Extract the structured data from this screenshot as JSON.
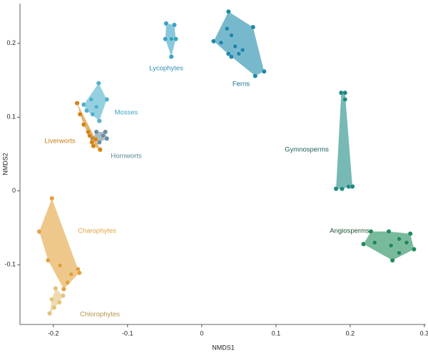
{
  "chart_data": {
    "type": "scatter",
    "x_label": "NMDS1",
    "y_label": "NMDS2",
    "xlim": [
      -0.245,
      0.302
    ],
    "ylim": [
      -0.181,
      0.254
    ],
    "xticks": [
      -0.2,
      -0.1,
      0,
      0.1,
      0.2,
      0.3
    ],
    "yticks": [
      -0.1,
      0,
      0.1,
      0.2
    ],
    "series": [
      {
        "name": "Lycophytes",
        "color": "#3aa3c4",
        "x": [
          -0.048,
          -0.037,
          -0.049,
          -0.041,
          -0.035,
          -0.041
        ],
        "y": [
          0.227,
          0.225,
          0.206,
          0.206,
          0.206,
          0.182
        ]
      },
      {
        "name": "Ferns",
        "color": "#1e88ab",
        "x": [
          0.036,
          0.069,
          0.016,
          0.026,
          0.04,
          0.045,
          0.036,
          0.05,
          0.034,
          0.055,
          0.072,
          0.084,
          0.04
        ],
        "y": [
          0.243,
          0.222,
          0.203,
          0.201,
          0.211,
          0.196,
          0.186,
          0.186,
          0.22,
          0.191,
          0.156,
          0.162,
          0.182
        ]
      },
      {
        "name": "Mosses",
        "color": "#4fb0cc",
        "x": [
          -0.139,
          -0.159,
          -0.149,
          -0.155,
          -0.142,
          -0.128,
          -0.138,
          -0.147
        ],
        "y": [
          0.146,
          0.117,
          0.124,
          0.109,
          0.114,
          0.124,
          0.095,
          0.104
        ]
      },
      {
        "name": "Hornworts",
        "color": "#6a8ea0",
        "x": [
          -0.142,
          -0.133,
          -0.13,
          -0.147,
          -0.138,
          -0.128
        ],
        "y": [
          0.08,
          0.075,
          0.08,
          0.071,
          0.066,
          0.071
        ]
      },
      {
        "name": "Liverworts",
        "color": "#d4820f",
        "x": [
          -0.168,
          -0.164,
          -0.159,
          -0.151,
          -0.148,
          -0.146,
          -0.137,
          -0.153,
          -0.143
        ],
        "y": [
          0.119,
          0.104,
          0.09,
          0.075,
          0.066,
          0.061,
          0.056,
          0.08,
          0.07
        ]
      },
      {
        "name": "Gymnosperms",
        "color": "#1d8a82",
        "x": [
          0.188,
          0.193,
          0.181,
          0.189,
          0.198,
          0.203,
          0.193
        ],
        "y": [
          0.133,
          0.133,
          0.003,
          0.003,
          0.006,
          0.006,
          0.124
        ]
      },
      {
        "name": "Angiosperms",
        "color": "#1f8a5a",
        "x": [
          0.218,
          0.228,
          0.252,
          0.281,
          0.286,
          0.266,
          0.257,
          0.276,
          0.266,
          0.255,
          0.233
        ],
        "y": [
          -0.072,
          -0.055,
          -0.055,
          -0.058,
          -0.079,
          -0.084,
          -0.094,
          -0.07,
          -0.065,
          -0.074,
          -0.07
        ]
      },
      {
        "name": "Charophytes",
        "color": "#e3a13c",
        "x": [
          -0.202,
          -0.219,
          -0.207,
          -0.191,
          -0.176,
          -0.167,
          -0.165,
          -0.181,
          -0.186
        ],
        "y": [
          -0.01,
          -0.055,
          -0.094,
          -0.101,
          -0.113,
          -0.106,
          -0.111,
          -0.124,
          -0.133
        ]
      },
      {
        "name": "Chlorophytes",
        "color": "#e2c27a",
        "x": [
          -0.197,
          -0.202,
          -0.205,
          -0.192,
          -0.187,
          -0.199
        ],
        "y": [
          -0.132,
          -0.147,
          -0.166,
          -0.151,
          -0.142,
          -0.158
        ]
      }
    ]
  }
}
